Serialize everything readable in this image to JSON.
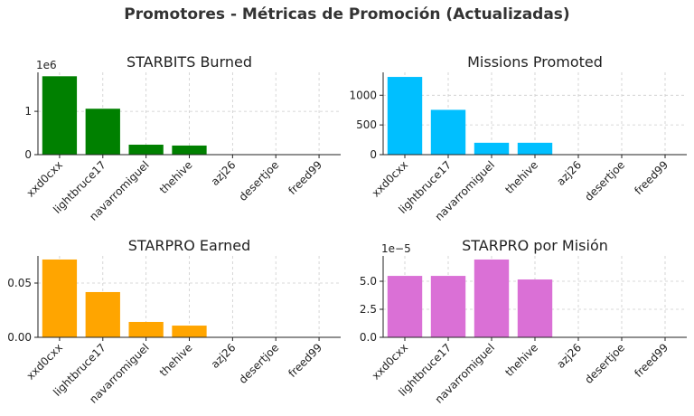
{
  "title": "Promotores - Métricas de Promoción (Actualizadas)",
  "chart_data": [
    {
      "type": "bar",
      "title": "STARBITS Burned",
      "color": "#008000",
      "grid": true,
      "categories": [
        "xxd0cxx",
        "lightbruce17",
        "navarromiguel",
        "thehive",
        "azj26",
        "desertjoe",
        "freed99"
      ],
      "values": [
        1810000,
        1060000,
        230000,
        210000,
        0,
        0,
        0
      ],
      "ylim": [
        0,
        1900000
      ],
      "y_offset_label": "1e6",
      "yticks": [
        0,
        {
          "value": 1000000,
          "label": "1"
        }
      ]
    },
    {
      "type": "bar",
      "title": "Missions Promoted",
      "color": "#00bfff",
      "grid": true,
      "categories": [
        "xxd0cxx",
        "lightbruce17",
        "navarromiguel",
        "thehive",
        "azj26",
        "desertjoe",
        "freed99"
      ],
      "values": [
        1308,
        754,
        200,
        200,
        0,
        0,
        0
      ],
      "ylim": [
        0,
        1385
      ],
      "yticks": [
        0,
        500,
        1000
      ]
    },
    {
      "type": "bar",
      "title": "STARPRO Earned",
      "color": "#ffa500",
      "grid": true,
      "categories": [
        "xxd0cxx",
        "lightbruce17",
        "navarromiguel",
        "thehive",
        "azj26",
        "desertjoe",
        "freed99"
      ],
      "values": [
        0.0717,
        0.0417,
        0.0142,
        0.0108,
        0,
        0,
        0
      ],
      "ylim": [
        0,
        0.075
      ],
      "yticks": [
        {
          "value": 0,
          "label": "0.00"
        },
        {
          "value": 0.05,
          "label": "0.05"
        }
      ]
    },
    {
      "type": "bar",
      "title": "STARPRO por Misión",
      "color": "#da70d6",
      "grid": true,
      "categories": [
        "xxd0cxx",
        "lightbruce17",
        "navarromiguel",
        "thehive",
        "azj26",
        "desertjoe",
        "freed99"
      ],
      "values": [
        5.48e-05,
        5.48e-05,
        6.94e-05,
        5.16e-05,
        0,
        0,
        0
      ],
      "ylim": [
        0,
        7.26e-05
      ],
      "y_offset_label": "1e−5",
      "yticks": [
        {
          "value": 0,
          "label": "0.0"
        },
        {
          "value": 2.5e-05,
          "label": "2.5"
        },
        {
          "value": 5e-05,
          "label": "5.0"
        }
      ]
    }
  ]
}
